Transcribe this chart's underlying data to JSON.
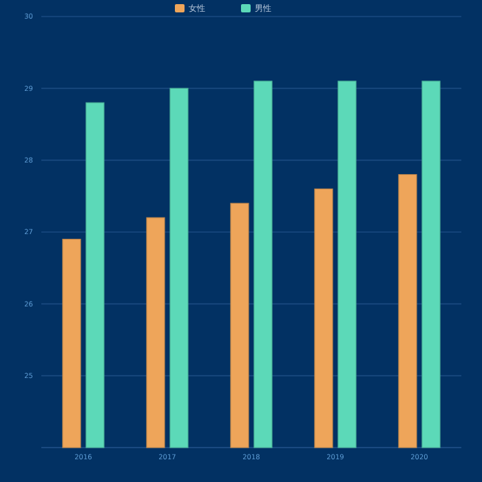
{
  "chart_data": {
    "type": "bar",
    "categories": [
      "2016",
      "2017",
      "2018",
      "2019",
      "2020"
    ],
    "series": [
      {
        "name": "女性",
        "color": "#eea55a",
        "values": [
          26.9,
          27.2,
          27.4,
          27.6,
          27.8
        ]
      },
      {
        "name": "男性",
        "color": "#5cd9b8",
        "values": [
          28.8,
          29.0,
          29.1,
          29.1,
          29.1
        ]
      }
    ],
    "ylim": [
      24,
      30
    ],
    "yticks": [
      {
        "value": 24,
        "label": null
      },
      25,
      26,
      27,
      28,
      29,
      30
    ],
    "grid": "y",
    "legend": "top"
  }
}
